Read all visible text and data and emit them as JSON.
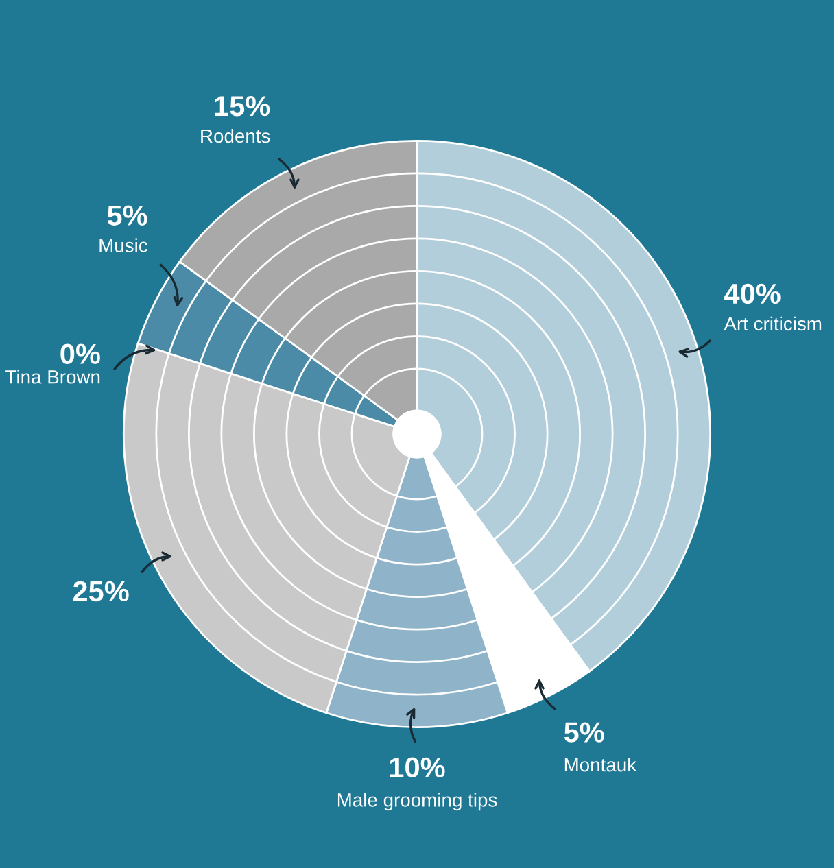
{
  "chart_data": {
    "type": "pie",
    "categories": [
      "Art criticism",
      "Montauk",
      "Male grooming tips",
      null,
      "Tina Brown",
      "Music",
      "Rodents"
    ],
    "values": [
      40,
      5,
      10,
      25,
      0,
      5,
      15
    ],
    "value_labels": [
      "40%",
      "5%",
      "10%",
      "25%",
      "0%",
      "5%",
      "15%"
    ],
    "colors": [
      "#b3cedb",
      "#ffffff",
      "#8fb4c9",
      "#c9c9c9",
      "#c9c9c9",
      "#4b8ba7",
      "#a9a9a9"
    ],
    "grid": true
  }
}
